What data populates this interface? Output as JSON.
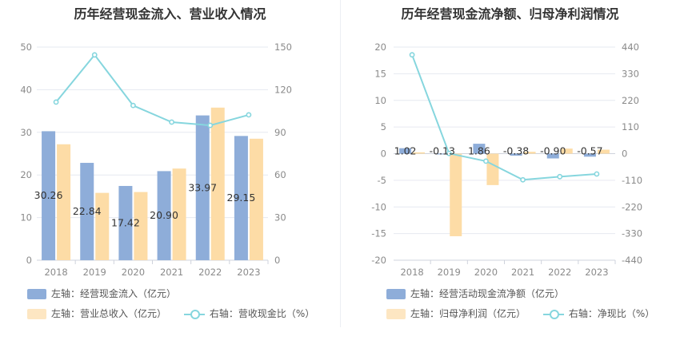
{
  "colors": {
    "blue": "#8eadd9",
    "orange": "#fddca6",
    "cyan": "#86d6de"
  },
  "chart_data": [
    {
      "type": "bar",
      "title": "历年经营现金流入、营业收入情况",
      "categories": [
        "2018",
        "2019",
        "2020",
        "2021",
        "2022",
        "2023"
      ],
      "series": [
        {
          "name": "左轴：经营现金流入（亿元）",
          "axis": "left",
          "kind": "bar",
          "values": [
            30.26,
            22.84,
            17.42,
            20.9,
            33.97,
            29.15
          ],
          "labels": [
            "30.26",
            "22.84",
            "17.42",
            "20.90",
            "33.97",
            "29.15"
          ]
        },
        {
          "name": "左轴：营业总收入（亿元）",
          "axis": "left",
          "kind": "bar",
          "values": [
            27.2,
            15.8,
            16.0,
            21.5,
            35.8,
            28.5
          ]
        },
        {
          "name": "右轴：营收现金比（%）",
          "axis": "right",
          "kind": "line",
          "values": [
            111.3,
            144.5,
            108.9,
            97.2,
            94.9,
            102.3
          ]
        }
      ],
      "left_axis": {
        "ylim": [
          0,
          50
        ],
        "ticks": [
          "0",
          "10",
          "20",
          "30",
          "40",
          "50"
        ]
      },
      "right_axis": {
        "ylim": [
          0,
          150
        ],
        "ticks": [
          "0",
          "30",
          "60",
          "90",
          "120",
          "150"
        ]
      }
    },
    {
      "type": "bar",
      "title": "历年经营现金流净额、归母净利润情况",
      "categories": [
        "2018",
        "2019",
        "2020",
        "2021",
        "2022",
        "2023"
      ],
      "series": [
        {
          "name": "左轴：经营活动现金流净额（亿元）",
          "axis": "left",
          "kind": "bar",
          "values": [
            1.02,
            -0.13,
            1.86,
            -0.38,
            -0.9,
            -0.57
          ],
          "labels": [
            "1.02",
            "-0.13",
            "1.86",
            "-0.38",
            "-0.90",
            "-0.57"
          ]
        },
        {
          "name": "左轴：归母净利润（亿元）",
          "axis": "left",
          "kind": "bar",
          "values": [
            0.25,
            -15.5,
            -5.9,
            0.35,
            0.95,
            0.75
          ]
        },
        {
          "name": "右轴：净现比（%）",
          "axis": "right",
          "kind": "line",
          "values": [
            408,
            1,
            -31,
            -108,
            -95,
            -84
          ]
        }
      ],
      "left_axis": {
        "ylim": [
          -20,
          20
        ],
        "ticks": [
          "-20",
          "-15",
          "-10",
          "-5",
          "0",
          "5",
          "10",
          "15",
          "20"
        ]
      },
      "right_axis": {
        "ylim": [
          -440,
          440
        ],
        "ticks": [
          "-440",
          "-330",
          "-220",
          "-110",
          "0",
          "110",
          "220",
          "330",
          "440"
        ]
      }
    }
  ]
}
